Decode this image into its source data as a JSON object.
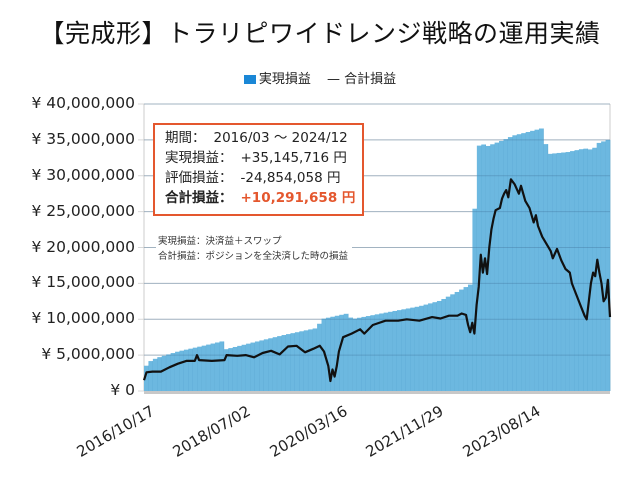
{
  "title": "【完成形】トラリピワイドレンジ戦略の運用実績",
  "legend": {
    "bar_label": "実現損益",
    "line_label": "— 合計損益",
    "bar_color": "#1a87d6"
  },
  "info_box": {
    "period_label": "期間：",
    "period_value": "2016/03 ～ 2024/12",
    "realized_label": "実現損益：",
    "realized_value": "+35,145,716 円",
    "unrealized_label": "評価損益：",
    "unrealized_value": "-24,854,058 円",
    "total_label": "合計損益：",
    "total_value": "+10,291,658 円",
    "border_color": "#e4572e"
  },
  "notes": {
    "line1": "実現損益：決済益＋スワップ",
    "line2": "合計損益：ポジションを全決済した時の損益"
  },
  "y_ticks": [
    "¥ 40,000,000",
    "¥ 35,000,000",
    "¥ 30,000,000",
    "¥ 25,000,000",
    "¥ 20,000,000",
    "¥ 15,000,000",
    "¥ 10,000,000",
    "¥ 5,000,000",
    "¥ 0"
  ],
  "x_ticks": [
    "2016/10/17",
    "2018/07/02",
    "2020/03/16",
    "2021/11/29",
    "2023/08/14"
  ],
  "chart_data": {
    "type": "bar+line",
    "title": "【完成形】トラリピワイドレンジ戦略の運用実績",
    "xlabel": "",
    "ylabel": "",
    "ylim": [
      0,
      40000000
    ],
    "y_tick_step": 5000000,
    "grid": true,
    "legend_position": "top",
    "x_tick_labels": [
      "2016/10/17",
      "2018/07/02",
      "2020/03/16",
      "2021/11/29",
      "2023/08/14"
    ],
    "x_range_pixels_note": "x is fraction 0..1 across plot width (2016/03 to 2024/12)",
    "series": [
      {
        "name": "実現損益",
        "type": "bar",
        "color": "#6cb8e0",
        "points": [
          [
            0.0,
            3.0
          ],
          [
            0.01,
            4.0
          ],
          [
            0.03,
            4.6
          ],
          [
            0.08,
            5.5
          ],
          [
            0.14,
            6.3
          ],
          [
            0.19,
            7.0
          ],
          [
            0.192,
            5.8
          ],
          [
            0.26,
            6.8
          ],
          [
            0.33,
            7.8
          ],
          [
            0.41,
            8.8
          ],
          [
            0.418,
            10.0
          ],
          [
            0.48,
            10.8
          ],
          [
            0.49,
            10.0
          ],
          [
            0.56,
            10.8
          ],
          [
            0.65,
            11.8
          ],
          [
            0.7,
            12.6
          ],
          [
            0.745,
            14.0
          ],
          [
            0.775,
            15.0
          ],
          [
            0.785,
            34.0
          ],
          [
            0.8,
            34.5
          ],
          [
            0.805,
            34.0
          ],
          [
            0.85,
            35.0
          ],
          [
            0.9,
            36.0
          ],
          [
            0.872,
            35.6
          ],
          [
            0.945,
            36.7
          ],
          [
            0.95,
            33.0
          ],
          [
            1.0,
            33.3
          ],
          [
            1.04,
            33.8
          ],
          [
            1.06,
            33.6
          ],
          [
            1.07,
            34.5
          ],
          [
            1.1,
            35.1
          ]
        ]
      },
      {
        "name": "合計損益",
        "type": "line",
        "color": "#111111",
        "points": [
          [
            0.0,
            1.5
          ],
          [
            0.006,
            2.6
          ],
          [
            0.02,
            2.7
          ],
          [
            0.04,
            2.7
          ],
          [
            0.06,
            3.3
          ],
          [
            0.08,
            3.8
          ],
          [
            0.1,
            4.2
          ],
          [
            0.12,
            4.2
          ],
          [
            0.125,
            5.0
          ],
          [
            0.13,
            4.3
          ],
          [
            0.16,
            4.2
          ],
          [
            0.19,
            4.3
          ],
          [
            0.195,
            5.0
          ],
          [
            0.22,
            4.9
          ],
          [
            0.24,
            5.0
          ],
          [
            0.26,
            4.7
          ],
          [
            0.28,
            5.3
          ],
          [
            0.3,
            5.6
          ],
          [
            0.32,
            5.1
          ],
          [
            0.34,
            6.2
          ],
          [
            0.36,
            6.3
          ],
          [
            0.38,
            5.4
          ],
          [
            0.4,
            5.9
          ],
          [
            0.415,
            6.3
          ],
          [
            0.425,
            5.5
          ],
          [
            0.435,
            3.5
          ],
          [
            0.44,
            1.4
          ],
          [
            0.445,
            3.0
          ],
          [
            0.45,
            2.0
          ],
          [
            0.455,
            3.5
          ],
          [
            0.46,
            5.5
          ],
          [
            0.47,
            7.5
          ],
          [
            0.49,
            8.0
          ],
          [
            0.51,
            8.6
          ],
          [
            0.52,
            8.0
          ],
          [
            0.54,
            9.2
          ],
          [
            0.57,
            9.8
          ],
          [
            0.6,
            9.8
          ],
          [
            0.62,
            10.0
          ],
          [
            0.65,
            9.8
          ],
          [
            0.68,
            10.3
          ],
          [
            0.7,
            10.1
          ],
          [
            0.72,
            10.5
          ],
          [
            0.74,
            10.5
          ],
          [
            0.75,
            10.8
          ],
          [
            0.76,
            10.6
          ],
          [
            0.765,
            9.2
          ],
          [
            0.77,
            8.2
          ],
          [
            0.775,
            9.5
          ],
          [
            0.78,
            8.0
          ],
          [
            0.785,
            12.0
          ],
          [
            0.79,
            14.5
          ],
          [
            0.795,
            19.0
          ],
          [
            0.8,
            16.5
          ],
          [
            0.805,
            18.5
          ],
          [
            0.81,
            16.3
          ],
          [
            0.815,
            20.0
          ],
          [
            0.82,
            22.5
          ],
          [
            0.825,
            24.0
          ],
          [
            0.83,
            25.2
          ],
          [
            0.84,
            25.5
          ],
          [
            0.845,
            26.8
          ],
          [
            0.85,
            27.5
          ],
          [
            0.855,
            28.0
          ],
          [
            0.86,
            27.0
          ],
          [
            0.866,
            29.5
          ],
          [
            0.875,
            28.8
          ],
          [
            0.885,
            27.5
          ],
          [
            0.89,
            28.6
          ],
          [
            0.9,
            26.5
          ],
          [
            0.91,
            25.5
          ],
          [
            0.92,
            23.5
          ],
          [
            0.925,
            24.5
          ],
          [
            0.93,
            23.0
          ],
          [
            0.94,
            21.5
          ],
          [
            0.95,
            20.5
          ],
          [
            0.96,
            19.5
          ],
          [
            0.965,
            18.5
          ],
          [
            0.975,
            19.8
          ],
          [
            0.985,
            18.2
          ],
          [
            0.995,
            17.0
          ],
          [
            1.005,
            16.5
          ],
          [
            1.01,
            15.0
          ],
          [
            1.02,
            13.5
          ],
          [
            1.03,
            12.0
          ],
          [
            1.04,
            10.5
          ],
          [
            1.045,
            10.0
          ],
          [
            1.055,
            15.0
          ],
          [
            1.06,
            16.5
          ],
          [
            1.065,
            16.0
          ],
          [
            1.07,
            18.3
          ],
          [
            1.075,
            16.5
          ],
          [
            1.08,
            15.0
          ],
          [
            1.085,
            12.5
          ],
          [
            1.09,
            13.0
          ],
          [
            1.095,
            15.5
          ],
          [
            1.1,
            10.3
          ]
        ]
      }
    ]
  }
}
